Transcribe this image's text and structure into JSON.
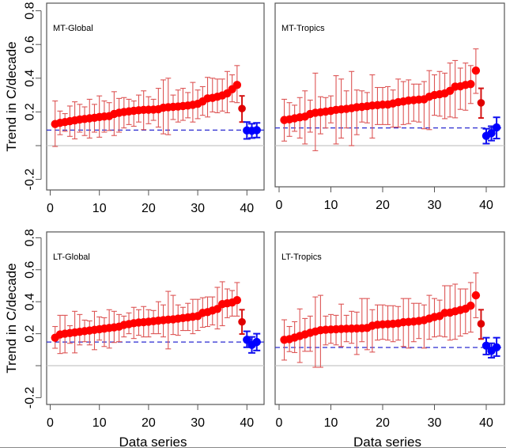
{
  "chart_data": [
    {
      "type": "scatter",
      "panel": "top-left",
      "title": "MT-Global",
      "xlabel": "",
      "ylabel": "Trend in C/decade",
      "xlim": [
        0,
        42
      ],
      "ylim": [
        -0.2,
        0.8
      ],
      "xticks": [
        "0",
        "10",
        "20",
        "30",
        "40"
      ],
      "yticks": [
        "-0.2",
        "",
        "0.2",
        "0.4",
        "0.6",
        "0.8"
      ],
      "reference_dashed": 0.092,
      "zero_line": 0.0,
      "series": [
        {
          "name": "models",
          "color": "#ff0000",
          "values": [
            0.128,
            0.135,
            0.14,
            0.145,
            0.15,
            0.155,
            0.158,
            0.162,
            0.165,
            0.17,
            0.173,
            0.175,
            0.188,
            0.195,
            0.2,
            0.203,
            0.207,
            0.21,
            0.212,
            0.213,
            0.214,
            0.216,
            0.225,
            0.228,
            0.23,
            0.232,
            0.235,
            0.238,
            0.242,
            0.248,
            0.262,
            0.28,
            0.283,
            0.29,
            0.298,
            0.31,
            0.335,
            0.36,
            0.22
          ],
          "lower": [
            -0.005,
            0.065,
            0.085,
            0.055,
            0.04,
            0.08,
            0.06,
            0.045,
            0.08,
            0.05,
            0.08,
            0.09,
            0.06,
            0.08,
            0.105,
            0.125,
            0.115,
            0.14,
            0.095,
            0.13,
            0.15,
            0.11,
            0.07,
            0.065,
            0.155,
            0.14,
            0.15,
            0.165,
            0.14,
            0.16,
            0.18,
            0.17,
            0.2,
            0.195,
            0.205,
            0.195,
            0.26,
            0.255,
            0.14
          ],
          "upper": [
            0.265,
            0.205,
            0.19,
            0.235,
            0.26,
            0.245,
            0.23,
            0.275,
            0.245,
            0.295,
            0.265,
            0.255,
            0.32,
            0.28,
            0.285,
            0.275,
            0.265,
            0.3,
            0.325,
            0.29,
            0.275,
            0.34,
            0.39,
            0.4,
            0.3,
            0.33,
            0.34,
            0.315,
            0.375,
            0.33,
            0.35,
            0.405,
            0.4,
            0.395,
            0.395,
            0.44,
            0.42,
            0.475,
            0.295
          ]
        },
        {
          "name": "observations",
          "color": "#0000ff",
          "values": [
            0.09,
            0.088,
            0.092
          ],
          "lower": [
            0.04,
            0.045,
            0.048
          ],
          "upper": [
            0.14,
            0.13,
            0.135
          ]
        }
      ]
    },
    {
      "type": "scatter",
      "panel": "top-right",
      "title": "MT-Tropics",
      "xlabel": "",
      "ylabel": "",
      "xlim": [
        0,
        42
      ],
      "ylim": [
        -0.2,
        0.8
      ],
      "xticks": [
        "0",
        "10",
        "20",
        "30",
        "40"
      ],
      "yticks": [],
      "reference_dashed": 0.105,
      "zero_line": 0.0,
      "series": [
        {
          "name": "models",
          "color": "#ff0000",
          "values": [
            0.152,
            0.156,
            0.162,
            0.168,
            0.172,
            0.188,
            0.195,
            0.198,
            0.202,
            0.206,
            0.212,
            0.215,
            0.218,
            0.222,
            0.228,
            0.23,
            0.234,
            0.238,
            0.24,
            0.243,
            0.244,
            0.25,
            0.258,
            0.262,
            0.268,
            0.27,
            0.273,
            0.275,
            0.29,
            0.3,
            0.305,
            0.31,
            0.325,
            0.35,
            0.352,
            0.36,
            0.365,
            0.445,
            0.254
          ],
          "lower": [
            0.027,
            0.055,
            0.085,
            0.045,
            0.01,
            0.08,
            -0.03,
            0.07,
            0.105,
            0.135,
            0.01,
            0.045,
            0.105,
            0.0,
            0.065,
            0.14,
            0.135,
            0.045,
            0.125,
            0.125,
            0.125,
            0.11,
            0.11,
            0.125,
            0.13,
            0.145,
            0.14,
            0.1,
            0.095,
            0.18,
            0.175,
            0.16,
            0.17,
            0.165,
            0.215,
            0.21,
            0.25,
            0.31,
            0.164
          ],
          "upper": [
            0.275,
            0.255,
            0.24,
            0.285,
            0.325,
            0.27,
            0.43,
            0.29,
            0.285,
            0.295,
            0.415,
            0.395,
            0.325,
            0.44,
            0.33,
            0.325,
            0.315,
            0.42,
            0.345,
            0.345,
            0.35,
            0.33,
            0.395,
            0.38,
            0.39,
            0.365,
            0.365,
            0.38,
            0.445,
            0.42,
            0.44,
            0.43,
            0.49,
            0.505,
            0.46,
            0.49,
            0.475,
            0.574,
            0.34
          ]
        },
        {
          "name": "observations",
          "color": "#0000ff",
          "values": [
            0.058,
            0.074,
            0.108
          ],
          "lower": [
            0.012,
            0.03,
            0.042
          ],
          "upper": [
            0.1,
            0.115,
            0.168
          ]
        }
      ]
    },
    {
      "type": "scatter",
      "panel": "bottom-left",
      "title": "LT-Global",
      "xlabel": "Data series",
      "ylabel": "Trend in C/decade",
      "xlim": [
        0,
        42
      ],
      "ylim": [
        -0.2,
        0.8
      ],
      "xticks": [
        "0",
        "10",
        "20",
        "30",
        "40"
      ],
      "yticks": [
        "-0.2",
        "",
        "0.2",
        "0.4",
        "0.6",
        "0.8"
      ],
      "reference_dashed": 0.148,
      "zero_line": 0.0,
      "series": [
        {
          "name": "models",
          "color": "#ff0000",
          "values": [
            0.175,
            0.195,
            0.2,
            0.204,
            0.208,
            0.212,
            0.216,
            0.22,
            0.224,
            0.228,
            0.232,
            0.236,
            0.24,
            0.244,
            0.255,
            0.26,
            0.266,
            0.27,
            0.272,
            0.275,
            0.278,
            0.282,
            0.285,
            0.288,
            0.29,
            0.294,
            0.298,
            0.302,
            0.306,
            0.31,
            0.33,
            0.335,
            0.345,
            0.355,
            0.385,
            0.39,
            0.395,
            0.41,
            0.274
          ],
          "lower": [
            0.109,
            0.076,
            0.08,
            0.14,
            0.08,
            0.13,
            0.15,
            0.13,
            0.1,
            0.16,
            0.12,
            0.11,
            0.145,
            0.15,
            0.18,
            0.2,
            0.17,
            0.19,
            0.18,
            0.18,
            0.2,
            0.2,
            0.18,
            0.105,
            0.195,
            0.19,
            0.22,
            0.22,
            0.2,
            0.22,
            0.24,
            0.245,
            0.255,
            0.23,
            0.25,
            0.3,
            0.31,
            0.31,
            0.198
          ],
          "upper": [
            0.245,
            0.315,
            0.315,
            0.25,
            0.34,
            0.32,
            0.285,
            0.28,
            0.34,
            0.305,
            0.3,
            0.35,
            0.34,
            0.32,
            0.31,
            0.33,
            0.365,
            0.35,
            0.37,
            0.35,
            0.345,
            0.4,
            0.38,
            0.465,
            0.44,
            0.38,
            0.365,
            0.39,
            0.415,
            0.415,
            0.425,
            0.43,
            0.43,
            0.49,
            0.525,
            0.48,
            0.47,
            0.52,
            0.35
          ]
        },
        {
          "name": "observations",
          "color": "#0000ff",
          "values": [
            0.162,
            0.13,
            0.148
          ],
          "lower": [
            0.115,
            0.08,
            0.095
          ],
          "upper": [
            0.215,
            0.18,
            0.2
          ]
        }
      ]
    },
    {
      "type": "scatter",
      "panel": "bottom-right",
      "title": "LT-Tropics",
      "xlabel": "Data series",
      "ylabel": "",
      "xlim": [
        0,
        42
      ],
      "ylim": [
        -0.2,
        0.8
      ],
      "xticks": [
        "0",
        "10",
        "20",
        "30",
        "40"
      ],
      "yticks": [],
      "reference_dashed": 0.114,
      "zero_line": 0.0,
      "series": [
        {
          "name": "models",
          "color": "#ff0000",
          "values": [
            0.162,
            0.166,
            0.176,
            0.186,
            0.196,
            0.206,
            0.214,
            0.222,
            0.225,
            0.226,
            0.228,
            0.23,
            0.231,
            0.232,
            0.233,
            0.234,
            0.236,
            0.25,
            0.256,
            0.258,
            0.26,
            0.262,
            0.265,
            0.272,
            0.274,
            0.276,
            0.28,
            0.285,
            0.295,
            0.305,
            0.31,
            0.33,
            0.332,
            0.34,
            0.348,
            0.356,
            0.375,
            0.44,
            0.262
          ],
          "lower": [
            0.035,
            0.088,
            0.082,
            0.02,
            0.09,
            0.09,
            -0.01,
            -0.01,
            0.13,
            0.14,
            0.13,
            0.12,
            0.15,
            0.14,
            0.07,
            0.15,
            0.1,
            0.085,
            0.16,
            0.165,
            0.16,
            0.15,
            0.16,
            0.12,
            0.11,
            0.15,
            0.17,
            0.11,
            0.165,
            0.18,
            0.185,
            0.18,
            0.16,
            0.165,
            0.185,
            0.2,
            0.21,
            0.3,
            0.167
          ],
          "upper": [
            0.287,
            0.245,
            0.275,
            0.355,
            0.295,
            0.31,
            0.43,
            0.44,
            0.31,
            0.32,
            0.315,
            0.385,
            0.315,
            0.34,
            0.335,
            0.42,
            0.42,
            0.35,
            0.38,
            0.38,
            0.375,
            0.375,
            0.37,
            0.42,
            0.42,
            0.39,
            0.39,
            0.38,
            0.44,
            0.42,
            0.41,
            0.5,
            0.5,
            0.51,
            0.48,
            0.48,
            0.52,
            0.58,
            0.35
          ]
        },
        {
          "name": "observations",
          "color": "#0000ff",
          "values": [
            0.125,
            0.093,
            0.115
          ],
          "lower": [
            0.07,
            0.05,
            0.06
          ],
          "upper": [
            0.175,
            0.14,
            0.175
          ]
        }
      ]
    }
  ]
}
